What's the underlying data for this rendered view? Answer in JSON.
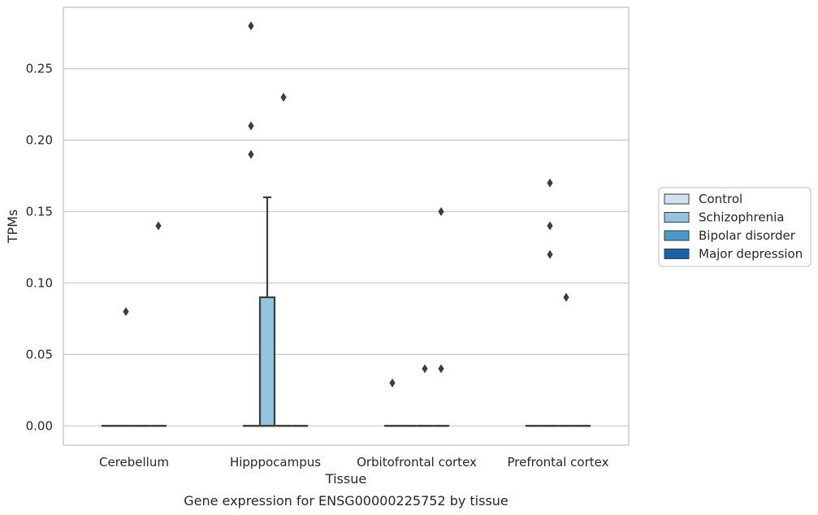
{
  "chart_data": {
    "type": "box",
    "title": "",
    "caption": "Gene expression for ENSG00000225752 by tissue",
    "xlabel": "Tissue",
    "ylabel": "TPMs",
    "ylim": [
      -0.0135,
      0.293
    ],
    "yticks": [
      0.0,
      0.05,
      0.1,
      0.15,
      0.2,
      0.25
    ],
    "ytick_labels": [
      "0.00",
      "0.05",
      "0.10",
      "0.15",
      "0.20",
      "0.25"
    ],
    "categories": [
      "Cerebellum",
      "Hipppocampus",
      "Orbitofrontal cortex",
      "Prefrontal cortex"
    ],
    "grid": true,
    "legend_position": "right",
    "series": [
      {
        "name": "Control",
        "color": "#d0e1f2",
        "boxes": [
          {
            "q1": 0,
            "median": 0,
            "q3": 0,
            "whisker_low": 0,
            "whisker_high": 0,
            "outliers": []
          },
          {
            "q1": 0,
            "median": 0,
            "q3": 0,
            "whisker_low": 0,
            "whisker_high": 0,
            "outliers": [
              0.28,
              0.21,
              0.19
            ]
          },
          {
            "q1": 0,
            "median": 0,
            "q3": 0,
            "whisker_low": 0,
            "whisker_high": 0,
            "outliers": [
              0.03
            ]
          },
          {
            "q1": 0,
            "median": 0,
            "q3": 0,
            "whisker_low": 0,
            "whisker_high": 0,
            "outliers": []
          }
        ]
      },
      {
        "name": "Schizophrenia",
        "color": "#94c4df",
        "boxes": [
          {
            "q1": 0,
            "median": 0,
            "q3": 0,
            "whisker_low": 0,
            "whisker_high": 0,
            "outliers": [
              0.08
            ]
          },
          {
            "q1": 0,
            "median": 0,
            "q3": 0.09,
            "whisker_low": 0,
            "whisker_high": 0.16,
            "outliers": []
          },
          {
            "q1": 0,
            "median": 0,
            "q3": 0,
            "whisker_low": 0,
            "whisker_high": 0,
            "outliers": []
          },
          {
            "q1": 0,
            "median": 0,
            "q3": 0,
            "whisker_low": 0,
            "whisker_high": 0,
            "outliers": [
              0.17,
              0.14,
              0.12
            ]
          }
        ]
      },
      {
        "name": "Bipolar disorder",
        "color": "#4a98c9",
        "boxes": [
          {
            "q1": 0,
            "median": 0,
            "q3": 0,
            "whisker_low": 0,
            "whisker_high": 0,
            "outliers": []
          },
          {
            "q1": 0,
            "median": 0,
            "q3": 0,
            "whisker_low": 0,
            "whisker_high": 0,
            "outliers": [
              0.23
            ]
          },
          {
            "q1": 0,
            "median": 0,
            "q3": 0,
            "whisker_low": 0,
            "whisker_high": 0,
            "outliers": [
              0.04
            ]
          },
          {
            "q1": 0,
            "median": 0,
            "q3": 0,
            "whisker_low": 0,
            "whisker_high": 0,
            "outliers": [
              0.09
            ]
          }
        ]
      },
      {
        "name": "Major depression",
        "color": "#1764ab",
        "boxes": [
          {
            "q1": 0,
            "median": 0,
            "q3": 0,
            "whisker_low": 0,
            "whisker_high": 0,
            "outliers": [
              0.14
            ]
          },
          {
            "q1": 0,
            "median": 0,
            "q3": 0,
            "whisker_low": 0,
            "whisker_high": 0,
            "outliers": []
          },
          {
            "q1": 0,
            "median": 0,
            "q3": 0,
            "whisker_low": 0,
            "whisker_high": 0,
            "outliers": [
              0.15,
              0.04
            ]
          },
          {
            "q1": 0,
            "median": 0,
            "q3": 0,
            "whisker_low": 0,
            "whisker_high": 0,
            "outliers": []
          }
        ]
      }
    ],
    "colors": {
      "grid": "#cccccc",
      "spine": "#cccccc",
      "line": "#3d3d3d",
      "legend_border": "#cccccc"
    }
  }
}
